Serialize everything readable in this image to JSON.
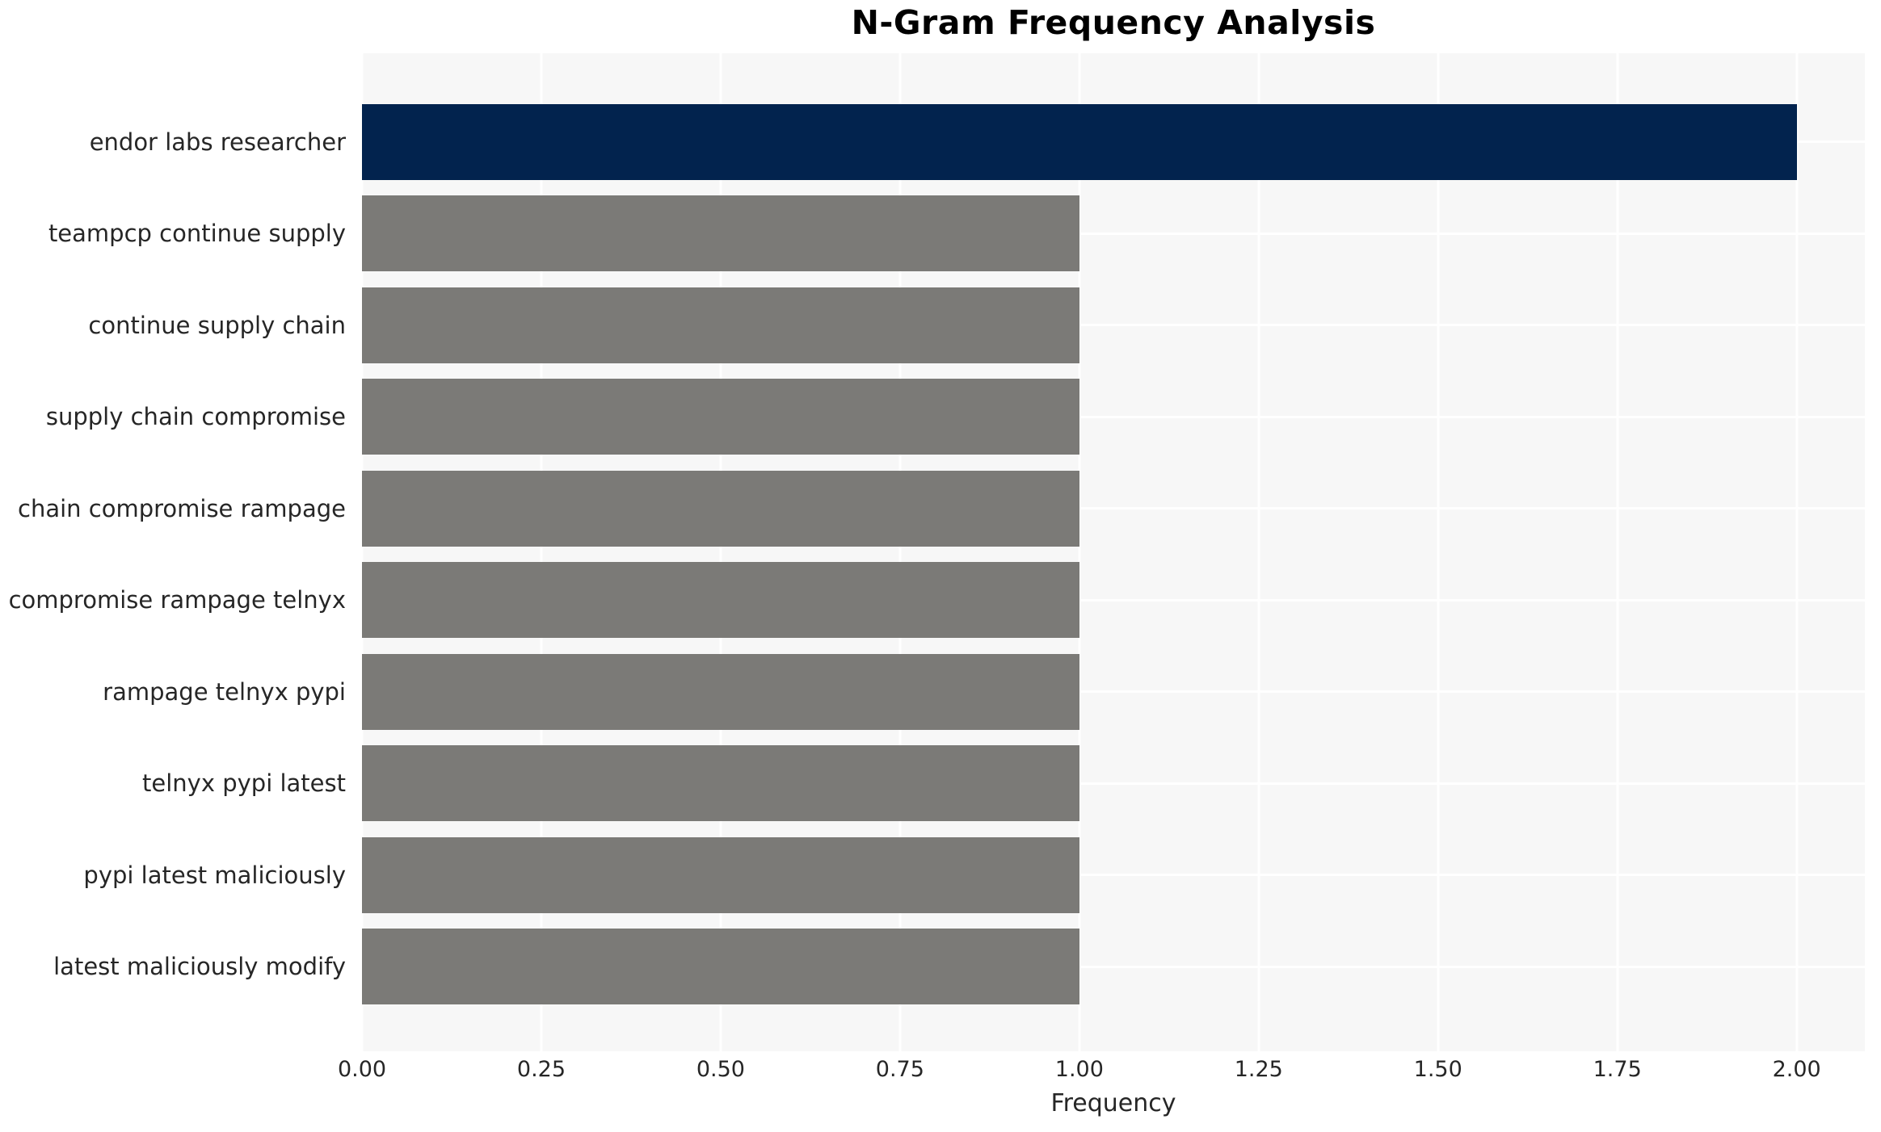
{
  "chart_data": {
    "type": "bar",
    "orientation": "horizontal",
    "title": "N-Gram Frequency Analysis",
    "xlabel": "Frequency",
    "ylabel": "",
    "categories": [
      "endor labs researcher",
      "teampcp continue supply",
      "continue supply chain",
      "supply chain compromise",
      "chain compromise rampage",
      "compromise rampage telnyx",
      "rampage telnyx pypi",
      "telnyx pypi latest",
      "pypi latest maliciously",
      "latest maliciously modify"
    ],
    "values": [
      2,
      1,
      1,
      1,
      1,
      1,
      1,
      1,
      1,
      1
    ],
    "bar_colors": [
      "#02234e",
      "#7b7a77",
      "#7b7a77",
      "#7b7a77",
      "#7b7a77",
      "#7b7a77",
      "#7b7a77",
      "#7b7a77",
      "#7b7a77",
      "#7b7a77"
    ],
    "xlim": [
      0,
      2.095
    ],
    "xticks": [
      0,
      0.25,
      0.5,
      0.75,
      1.0,
      1.25,
      1.5,
      1.75,
      2.0
    ],
    "xtick_labels": [
      "0.00",
      "0.25",
      "0.50",
      "0.75",
      "1.00",
      "1.25",
      "1.50",
      "1.75",
      "2.00"
    ],
    "grid": true,
    "legend": false,
    "colors": {
      "highlight": "#02234e",
      "default_bar": "#7b7a77",
      "plot_background": "#f7f7f7",
      "gridline": "#ffffff",
      "text": "#262626"
    }
  }
}
